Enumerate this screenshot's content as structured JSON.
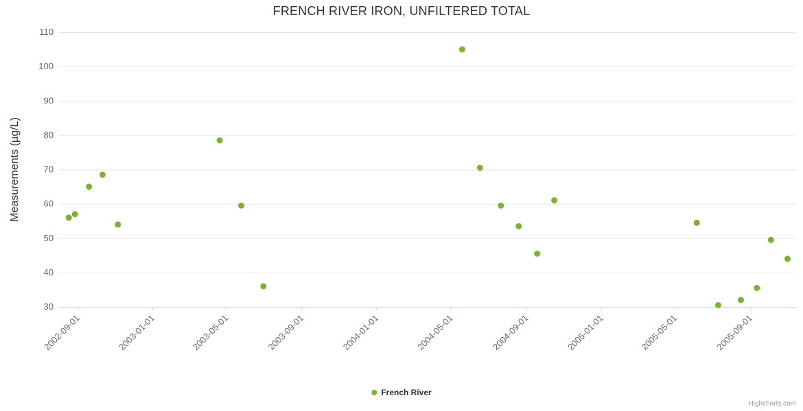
{
  "chart_data": {
    "type": "scatter",
    "title": "FRENCH RIVER IRON, UNFILTERED TOTAL",
    "ylabel": "Measurements (µg/L)",
    "xlabel": "",
    "ylim": [
      30,
      110
    ],
    "y_tick_step": 10,
    "grid": true,
    "legend_position": "bottom",
    "x_range": [
      "2002-08-01",
      "2005-11-15"
    ],
    "x_ticks": [
      "2002-09-01",
      "2003-01-01",
      "2003-05-01",
      "2003-09-01",
      "2004-01-01",
      "2004-05-01",
      "2004-09-01",
      "2005-01-01",
      "2005-05-01",
      "2005-09-01"
    ],
    "series": [
      {
        "name": "French River",
        "color": "#7cb32e",
        "points": [
          {
            "x": "2002-08-18",
            "y": 56
          },
          {
            "x": "2002-08-28",
            "y": 57
          },
          {
            "x": "2002-09-20",
            "y": 65
          },
          {
            "x": "2002-10-12",
            "y": 68.5
          },
          {
            "x": "2002-11-06",
            "y": 54
          },
          {
            "x": "2003-04-21",
            "y": 78.5
          },
          {
            "x": "2003-05-26",
            "y": 59.5
          },
          {
            "x": "2003-07-01",
            "y": 36
          },
          {
            "x": "2004-05-20",
            "y": 105
          },
          {
            "x": "2004-06-18",
            "y": 70.5
          },
          {
            "x": "2004-07-22",
            "y": 59.5
          },
          {
            "x": "2004-08-20",
            "y": 53.5
          },
          {
            "x": "2004-09-19",
            "y": 45.5
          },
          {
            "x": "2004-10-17",
            "y": 61
          },
          {
            "x": "2005-06-06",
            "y": 54.5
          },
          {
            "x": "2005-07-11",
            "y": 30.5
          },
          {
            "x": "2005-08-17",
            "y": 32
          },
          {
            "x": "2005-09-12",
            "y": 35.5
          },
          {
            "x": "2005-10-05",
            "y": 49.5
          },
          {
            "x": "2005-11-01",
            "y": 44
          }
        ]
      }
    ],
    "credits": "Highcharts.com",
    "colors": {
      "grid": "#e6e6e6",
      "axis_line": "#ccd6eb",
      "tick_label": "#666666",
      "axis_title": "#333333"
    }
  }
}
